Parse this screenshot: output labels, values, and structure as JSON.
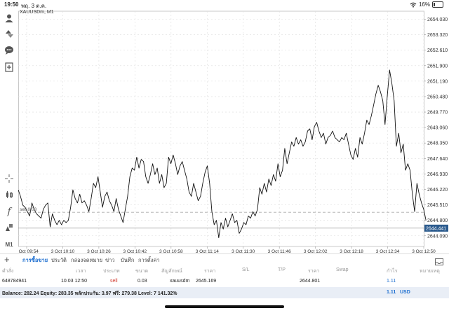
{
  "status": {
    "time": "19:50",
    "date": "พฤ. 3 ต.ค.",
    "battery": "16%"
  },
  "chart": {
    "symbol": "XAUUSDm, M1",
    "line_label": "sell 0.03",
    "current_price_label": "2644.441",
    "colors": {
      "line": "#111111",
      "price_tag": "#2b5b8e",
      "grid": "#dddddd"
    }
  },
  "chart_data": {
    "type": "line",
    "title": "XAUUSDm, M1",
    "y_ticks": [
      "2654.030",
      "2653.320",
      "2652.610",
      "2651.900",
      "2651.190",
      "2650.480",
      "2649.770",
      "2649.060",
      "2648.350",
      "2647.640",
      "2646.930",
      "2646.220",
      "2645.510",
      "2644.800",
      "2644.090"
    ],
    "x_ticks": [
      "3 Oct 09:54",
      "3 Oct 10:10",
      "3 Oct 10:26",
      "3 Oct 10:42",
      "3 Oct 10:58",
      "3 Oct 11:14",
      "3 Oct 11:30",
      "3 Oct 11:46",
      "3 Oct 12:02",
      "3 Oct 12:18",
      "3 Oct 12:34",
      "3 Oct 12:50"
    ],
    "ylim": [
      2643.6,
      2654.4
    ],
    "xlim": [
      0,
      178
    ],
    "values": [
      2646.2,
      2645.9,
      2645.5,
      2645.4,
      2645.2,
      2645.0,
      2645.6,
      2645.3,
      2645.1,
      2645.0,
      2644.9,
      2645.3,
      2645.5,
      2645.6,
      2644.5,
      2645.1,
      2644.8,
      2644.6,
      2644.8,
      2644.6,
      2644.8,
      2644.7,
      2644.8,
      2645.4,
      2646.2,
      2645.8,
      2645.6,
      2646.0,
      2645.6,
      2645.7,
      2645.5,
      2645.2,
      2645.8,
      2646.5,
      2646.3,
      2646.8,
      2646.1,
      2645.4,
      2645.9,
      2646.1,
      2645.7,
      2645.5,
      2645.2,
      2645.8,
      2645.3,
      2645.0,
      2644.7,
      2645.3,
      2645.9,
      2646.8,
      2647.2,
      2647.1,
      2647.7,
      2647.2,
      2647.6,
      2647.5,
      2646.8,
      2646.5,
      2646.9,
      2647.4,
      2646.9,
      2647.2,
      2646.5,
      2646.9,
      2646.3,
      2646.5,
      2647.7,
      2647.4,
      2647.8,
      2647.4,
      2646.9,
      2647.3,
      2647.5,
      2647.1,
      2646.7,
      2646.1,
      2645.9,
      2646.5,
      2646.1,
      2645.7,
      2645.9,
      2646.5,
      2647.0,
      2647.3,
      2646.5,
      2645.2,
      2644.6,
      2644.8,
      2644.0,
      2644.7,
      2644.4,
      2644.9,
      2644.5,
      2644.8,
      2645.1,
      2644.7,
      2644.8,
      2644.2,
      2644.4,
      2644.7,
      2644.6,
      2645.0,
      2644.9,
      2645.2,
      2645.0,
      2645.3,
      2646.3,
      2646.0,
      2646.5,
      2646.1,
      2646.7,
      2646.4,
      2646.9,
      2646.6,
      2647.4,
      2646.8,
      2647.1,
      2648.1,
      2647.4,
      2647.9,
      2648.4,
      2648.2,
      2648.6,
      2648.3,
      2648.5,
      2648.2,
      2648.4,
      2648.9,
      2649.0,
      2648.5,
      2649.1,
      2649.3,
      2648.9,
      2648.6,
      2648.8,
      2648.3,
      2648.6,
      2648.7,
      2648.9,
      2648.6,
      2648.5,
      2648.4,
      2648.6,
      2648.5,
      2648.8,
      2648.3,
      2647.8,
      2647.6,
      2648.1,
      2647.7,
      2648.6,
      2648.3,
      2648.8,
      2649.4,
      2649.2,
      2649.6,
      2650.1,
      2650.6,
      2651.0,
      2650.7,
      2650.3,
      2649.2,
      2650.5,
      2651.7,
      2651.1,
      2650.3,
      2648.2,
      2648.8,
      2647.9,
      2648.3,
      2647.1,
      2647.4,
      2647.1,
      2646.0,
      2645.2,
      2646.5,
      2646.0,
      2645.6,
      2645.3,
      2644.8
    ]
  },
  "tabs": [
    "การซื้อขาย",
    "ประวัติ",
    "กล่องจดหมาย",
    "ข่าว",
    "บันทึก",
    "การตั้งค่า"
  ],
  "table": {
    "headers": [
      "คำสั่ง",
      "เวลา",
      "ประเภท",
      "ขนาด",
      "สัญลักษณ์",
      "ราคา",
      "S/L",
      "T/P",
      "ราคา",
      "Swap",
      "กำไร",
      "หมายเหตุ"
    ],
    "row": [
      "648784941",
      "10.03 12:50",
      "sell",
      "0.03",
      "xauusdm",
      "2645.169",
      "",
      "",
      "2644.801",
      "",
      "1.11",
      ""
    ]
  },
  "balance": {
    "text": "Balance: 282.24 Equity: 283.35 หลักประกัน: 3.97 ฟรี: 279.38 Level: 7 141.32%",
    "profit": "1.11",
    "currency": "USD"
  }
}
